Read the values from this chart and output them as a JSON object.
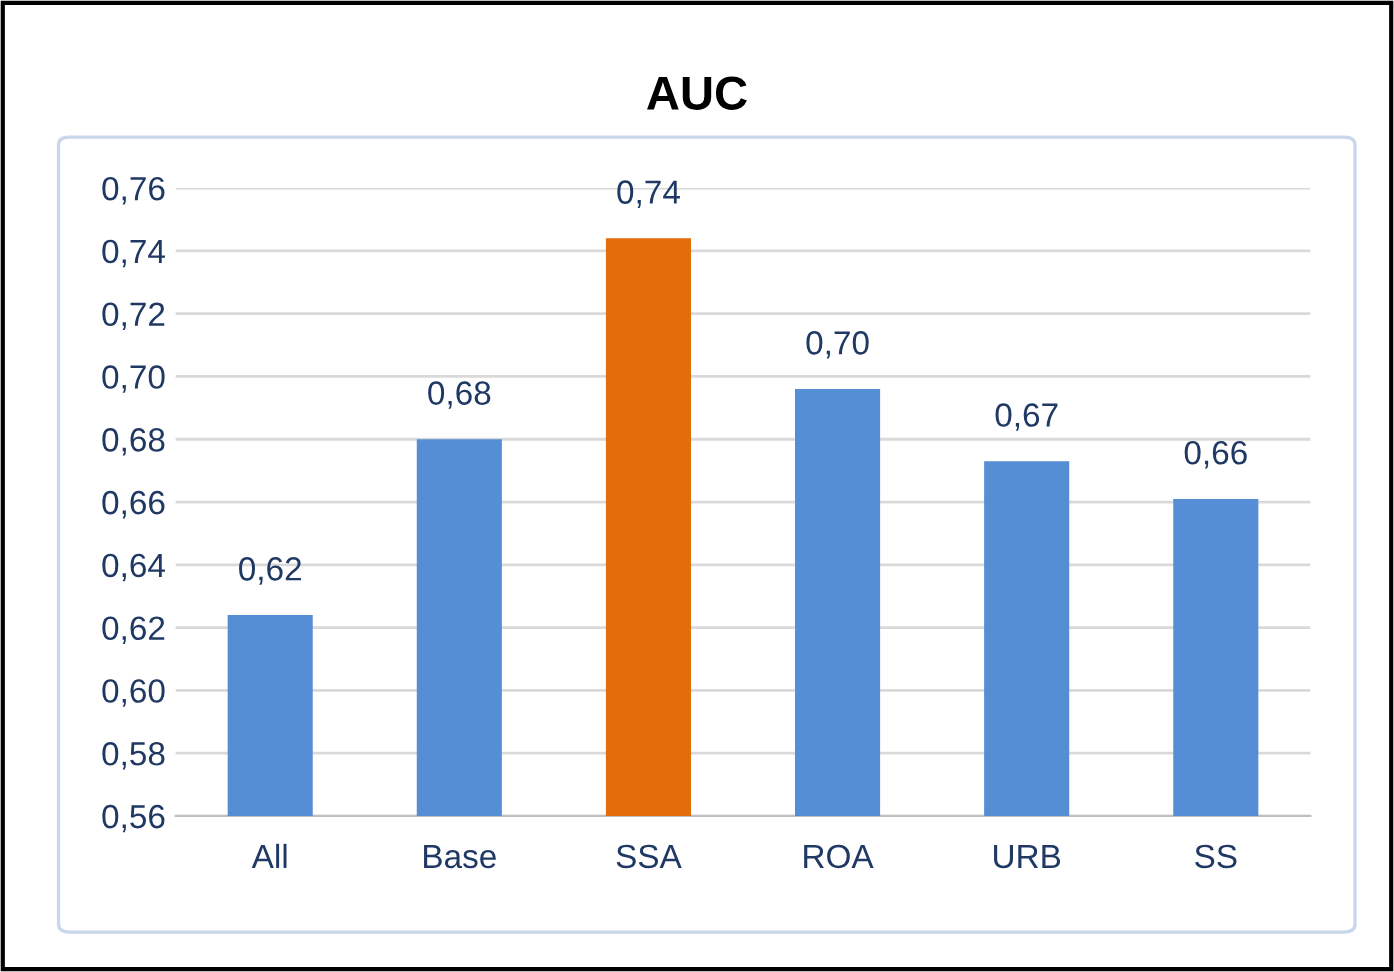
{
  "chart_data": {
    "type": "bar",
    "title": "AUC",
    "categories": [
      "All",
      "Base",
      "SSA",
      "ROA",
      "URB",
      "SS"
    ],
    "values": [
      0.624,
      0.68,
      0.744,
      0.696,
      0.673,
      0.661
    ],
    "colors": [
      "#558ed5",
      "#558ed5",
      "#e46c0a",
      "#558ed5",
      "#558ed5",
      "#558ed5"
    ],
    "value_labels": [
      "0,62",
      "0,68",
      "0,74",
      "0,70",
      "0,67",
      "0,66"
    ],
    "ylim": [
      0.56,
      0.76
    ],
    "yticks": [
      {
        "value": 0.56,
        "label": "0,56"
      },
      {
        "value": 0.58,
        "label": "0,58"
      },
      {
        "value": 0.6,
        "label": "0,60"
      },
      {
        "value": 0.62,
        "label": "0,62"
      },
      {
        "value": 0.64,
        "label": "0,64"
      },
      {
        "value": 0.66,
        "label": "0,66"
      },
      {
        "value": 0.68,
        "label": "0,68"
      },
      {
        "value": 0.7,
        "label": "0,70"
      },
      {
        "value": 0.72,
        "label": "0,72"
      },
      {
        "value": 0.74,
        "label": "0,74"
      },
      {
        "value": 0.76,
        "label": "0,76"
      }
    ],
    "grid": "y"
  }
}
